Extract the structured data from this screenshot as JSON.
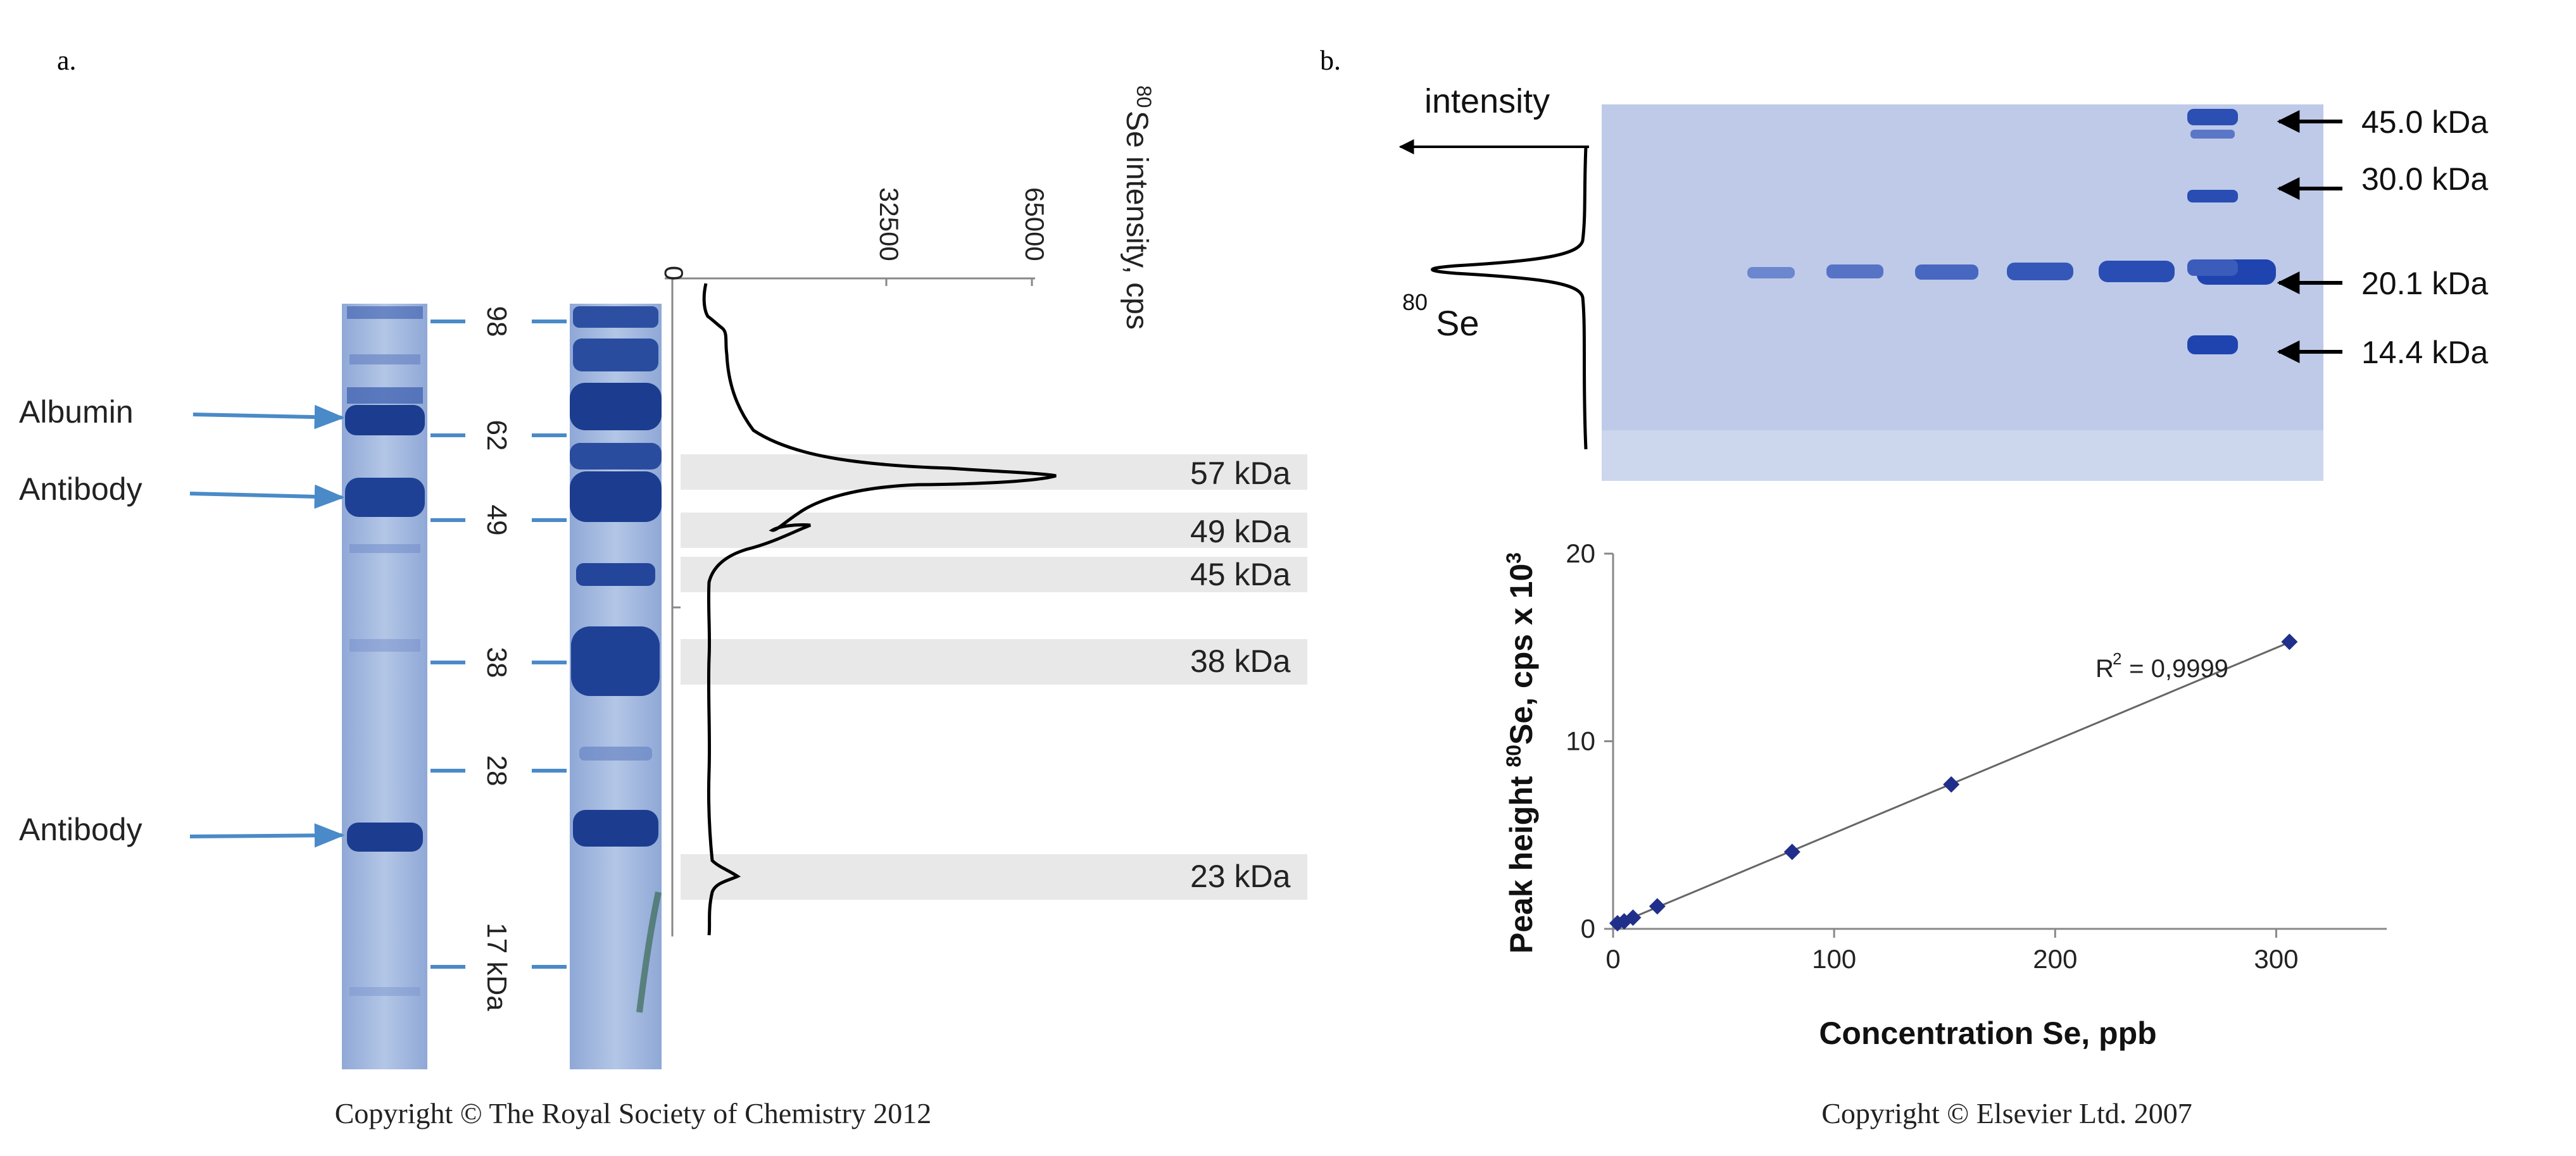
{
  "panel_a": {
    "label": "a.",
    "annotations": [
      "Albumin",
      "Antibody",
      "Antibody"
    ],
    "marker_labels": [
      "98",
      "62",
      "49",
      "38",
      "28",
      "17 kDa"
    ],
    "trace_axis_title_sup": "80",
    "trace_axis_title": "Se intensity, cps",
    "trace_axis_ticks": [
      "0",
      "32500",
      "65000"
    ],
    "band_labels": [
      "57 kDa",
      "49 kDa",
      "45 kDa",
      "38 kDa",
      "23 kDa"
    ],
    "copyright": "Copyright © The Royal Society of Chemistry 2012"
  },
  "panel_b": {
    "label": "b.",
    "intensity_label": "intensity",
    "se_label_sup": "80",
    "se_label": "Se",
    "marker_labels": [
      "45.0 kDa",
      "30.0 kDa",
      "20.1 kDa",
      "14.4 kDa"
    ],
    "copyright": "Copyright © Elsevier Ltd. 2007"
  },
  "colors": {
    "gel_bg": "#a9bde0",
    "band_dark": "#1b3c8f",
    "marker_line": "#4a8ac8",
    "highlight": "#e8e8e8",
    "point": "#1f2f8a"
  },
  "chart_data": {
    "type": "scatter",
    "x": [
      2,
      5,
      9,
      20,
      81,
      153,
      306
    ],
    "y": [
      0.3,
      0.4,
      0.6,
      1.2,
      4.1,
      7.7,
      15.3
    ],
    "trendline": true,
    "annotation": "R² = 0,9999",
    "annotation_base": "R",
    "annotation_sup": "2",
    "annotation_rest": " = 0,9999",
    "xlabel": "Concentration Se, ppb",
    "ylabel_parts": [
      "Peak height ",
      "80",
      "Se, cps x 10",
      "3"
    ],
    "xlim": [
      0,
      350
    ],
    "ylim": [
      0,
      20
    ],
    "xticks": [
      "0",
      "100",
      "200",
      "300"
    ],
    "yticks": [
      "0",
      "10",
      "20"
    ]
  }
}
